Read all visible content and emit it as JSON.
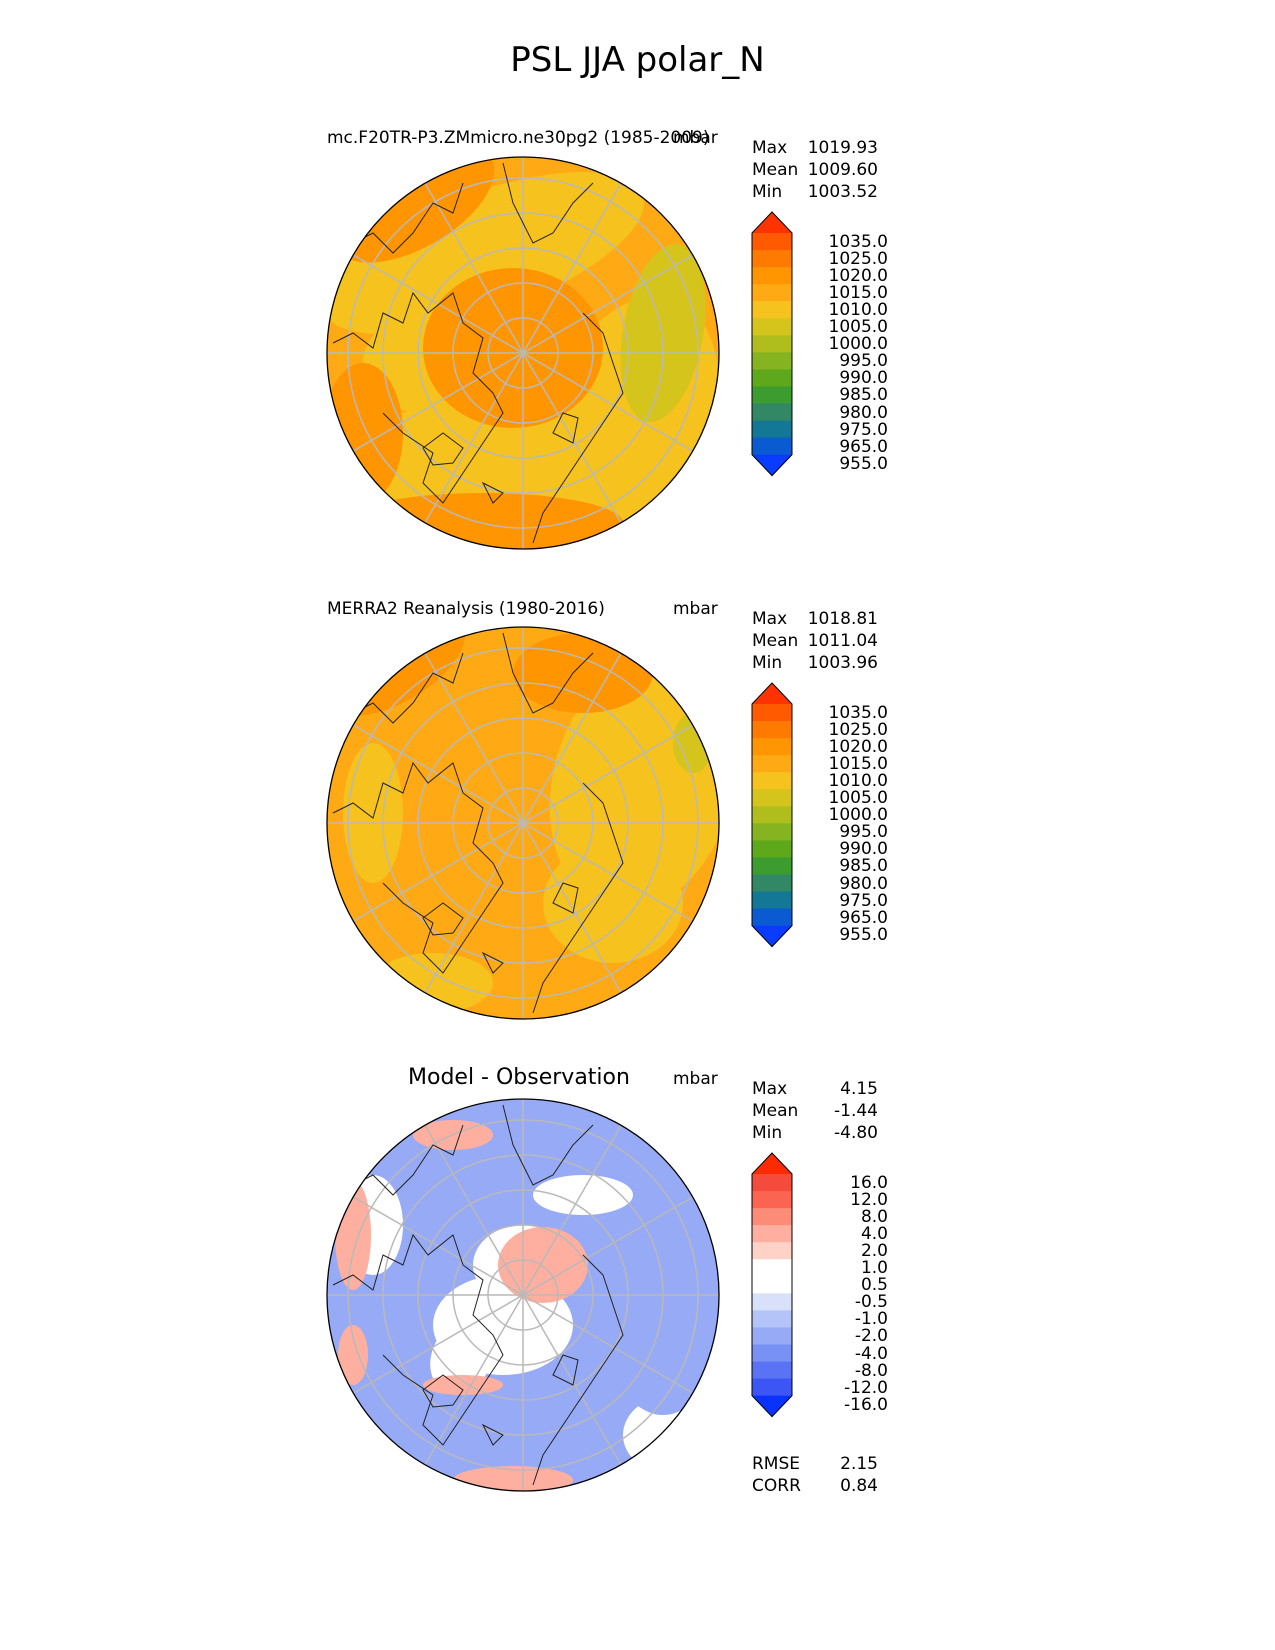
{
  "figure_title": "PSL JJA polar_N",
  "chart_data": [
    {
      "type": "heatmap",
      "projection": "north polar stereographic",
      "title": "mc.F20TR-P3.ZMmicro.ne30pg2 (1985-2009)",
      "units": "mbar",
      "stats": [
        {
          "label": "Max",
          "value": "1019.93"
        },
        {
          "label": "Mean",
          "value": "1009.60"
        },
        {
          "label": "Min",
          "value": "1003.52"
        }
      ],
      "colorbar": {
        "labels": [
          "1035.0",
          "1025.0",
          "1020.0",
          "1015.0",
          "1010.0",
          "1005.0",
          "1000.0",
          "995.0",
          "990.0",
          "985.0",
          "980.0",
          "975.0",
          "965.0",
          "955.0"
        ],
        "colors": [
          "#ff3300",
          "#ff5a00",
          "#ff7a00",
          "#ff9500",
          "#ffaa14",
          "#f5c21e",
          "#d4c41c",
          "#afbe1c",
          "#86b420",
          "#5ea81c",
          "#3c9c30",
          "#328864",
          "#127896",
          "#0a5ad2",
          "#0a3cff"
        ]
      },
      "field_colors": [
        "#ffaa14",
        "#f5c21e",
        "#ff9500",
        "#d4c41c"
      ]
    },
    {
      "type": "heatmap",
      "projection": "north polar stereographic",
      "title": "MERRA2 Reanalysis (1980-2016)",
      "units": "mbar",
      "stats": [
        {
          "label": "Max",
          "value": "1018.81"
        },
        {
          "label": "Mean",
          "value": "1011.04"
        },
        {
          "label": "Min",
          "value": "1003.96"
        }
      ],
      "colorbar": {
        "labels": [
          "1035.0",
          "1025.0",
          "1020.0",
          "1015.0",
          "1010.0",
          "1005.0",
          "1000.0",
          "995.0",
          "990.0",
          "985.0",
          "980.0",
          "975.0",
          "965.0",
          "955.0"
        ],
        "colors": [
          "#ff3300",
          "#ff5a00",
          "#ff7a00",
          "#ff9500",
          "#ffaa14",
          "#f5c21e",
          "#d4c41c",
          "#afbe1c",
          "#86b420",
          "#5ea81c",
          "#3c9c30",
          "#328864",
          "#127896",
          "#0a5ad2",
          "#0a3cff"
        ]
      },
      "field_colors": [
        "#ffaa14",
        "#f5c21e",
        "#ff9500",
        "#d4c41c"
      ]
    },
    {
      "type": "heatmap",
      "projection": "north polar stereographic",
      "title": "Model - Observation",
      "units": "mbar",
      "stats": [
        {
          "label": "Max",
          "value": "4.15"
        },
        {
          "label": "Mean",
          "value": "-1.44"
        },
        {
          "label": "Min",
          "value": "-4.80"
        }
      ],
      "colorbar": {
        "labels": [
          "16.0",
          "12.0",
          "8.0",
          "4.0",
          "2.0",
          "1.0",
          "0.5",
          "-0.5",
          "-1.0",
          "-2.0",
          "-4.0",
          "-8.0",
          "-12.0",
          "-16.0"
        ],
        "colors": [
          "#ff2a00",
          "#f54b3c",
          "#fa6450",
          "#fc8c78",
          "#feafa0",
          "#ffd2c8",
          "#ffffff",
          "#ffffff",
          "#d8e0fa",
          "#b4c4f8",
          "#97aaf5",
          "#7891f5",
          "#5a73f5",
          "#3c55f5",
          "#0a32ff"
        ]
      },
      "field_colors": [
        "#97aaf5",
        "#ffffff",
        "#feafa0",
        "#b4c4f8"
      ],
      "metrics": [
        {
          "label": "RMSE",
          "value": "2.15"
        },
        {
          "label": "CORR",
          "value": "0.84"
        }
      ]
    }
  ]
}
